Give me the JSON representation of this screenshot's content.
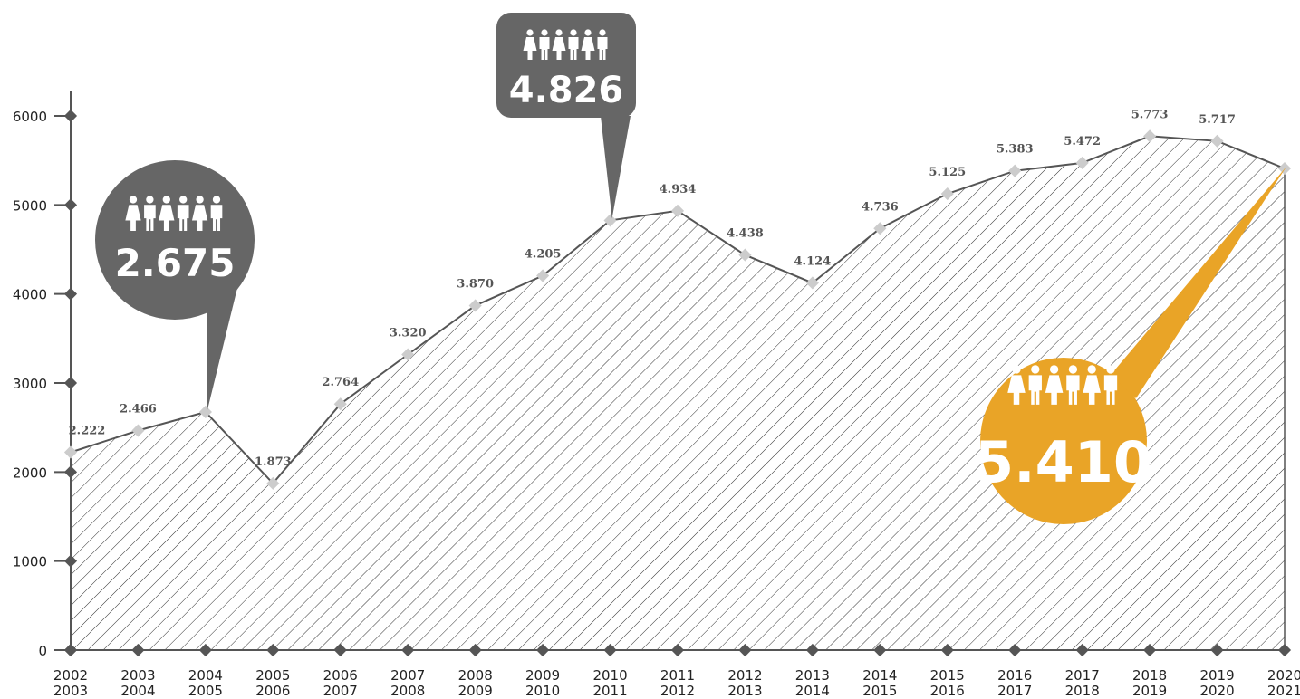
{
  "chart_data": {
    "type": "area",
    "categories": [
      [
        "2002",
        "2003"
      ],
      [
        "2003",
        "2004"
      ],
      [
        "2004",
        "2005"
      ],
      [
        "2005",
        "2006"
      ],
      [
        "2006",
        "2007"
      ],
      [
        "2007",
        "2008"
      ],
      [
        "2008",
        "2009"
      ],
      [
        "2009",
        "2010"
      ],
      [
        "2010",
        "2011"
      ],
      [
        "2011",
        "2012"
      ],
      [
        "2012",
        "2013"
      ],
      [
        "2013",
        "2014"
      ],
      [
        "2014",
        "2015"
      ],
      [
        "2015",
        "2016"
      ],
      [
        "2016",
        "2017"
      ],
      [
        "2017",
        "2018"
      ],
      [
        "2018",
        "2019"
      ],
      [
        "2019",
        "2020"
      ],
      [
        "2020",
        "2021"
      ]
    ],
    "values": [
      2222,
      2466,
      2675,
      1873,
      2764,
      3320,
      3870,
      4205,
      4826,
      4934,
      4438,
      4124,
      4736,
      5125,
      5383,
      5472,
      5773,
      5717,
      5410
    ],
    "data_labels": [
      "2.222",
      "2.466",
      "",
      "1.873",
      "2.764",
      "3.320",
      "3.870",
      "4.205",
      "",
      "4.934",
      "4.438",
      "4.124",
      "4.736",
      "5.125",
      "5.383",
      "5.472",
      "5.773",
      "5.717",
      ""
    ],
    "ylim": [
      0,
      6000
    ],
    "yticks": [
      0,
      1000,
      2000,
      3000,
      4000,
      5000,
      6000
    ],
    "fill": "diagonal-hatch",
    "callouts": [
      {
        "index": 2,
        "value": "2.675",
        "color": "#666666",
        "icon": "people-icon"
      },
      {
        "index": 8,
        "value": "4.826",
        "color": "#666666",
        "icon": "people-icon"
      },
      {
        "index": 18,
        "value": "5.410",
        "color": "#E9A427",
        "icon": "people-icon"
      }
    ],
    "colors": {
      "line": "#555555",
      "axis": "#555555",
      "marker": "#cccccc"
    }
  }
}
